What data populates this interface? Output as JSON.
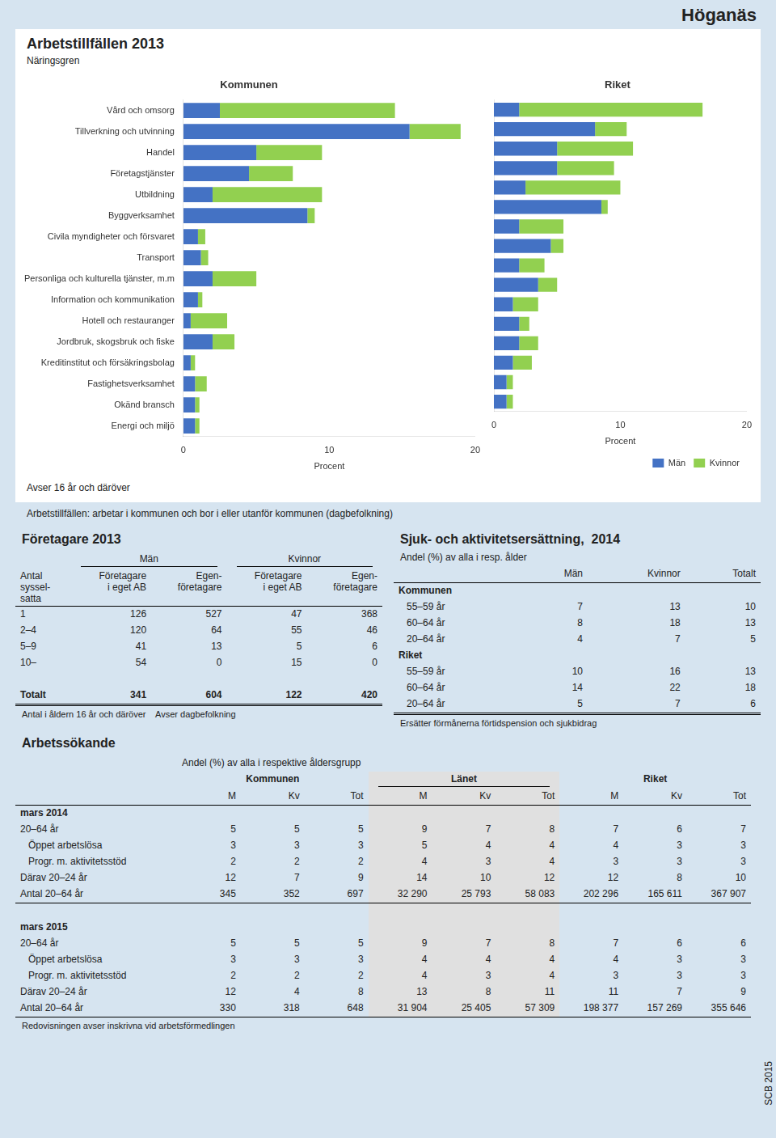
{
  "title": "Höganäs",
  "panel": {
    "title": "Arbetstillfällen 2013",
    "subtitle": "Näringsgren",
    "note": "Avser 16 år och däröver",
    "footnote": "Arbetstillfällen: arbetar i kommunen och bor i eller utanför kommunen (dagbefolkning)"
  },
  "chart_data": [
    {
      "type": "bar",
      "orientation": "horizontal",
      "stacked": true,
      "title": "Kommunen",
      "categories": [
        "Vård och omsorg",
        "Tillverkning och utvinning",
        "Handel",
        "Företagstjänster",
        "Utbildning",
        "Byggverksamhet",
        "Civila myndigheter och försvaret",
        "Transport",
        "Personliga och kulturella tjänster, m.m",
        "Information och kommunikation",
        "Hotell och restauranger",
        "Jordbruk, skogsbruk och fiske",
        "Kreditinstitut och försäkringsbolag",
        "Fastighetsverksamhet",
        "Okänd bransch",
        "Energi och miljö"
      ],
      "series": [
        {
          "name": "Män",
          "color": "#4472C4",
          "values": [
            2.5,
            15.5,
            5.0,
            4.5,
            2.0,
            8.5,
            1.0,
            1.2,
            2.0,
            1.0,
            0.5,
            2.0,
            0.5,
            0.8,
            0.8,
            0.8
          ]
        },
        {
          "name": "Kvinnor",
          "color": "#92D050",
          "values": [
            12.0,
            3.5,
            4.5,
            3.0,
            7.5,
            0.5,
            0.5,
            0.5,
            3.0,
            0.3,
            2.5,
            1.5,
            0.3,
            0.8,
            0.3,
            0.3
          ]
        }
      ],
      "x_label": "Procent",
      "xlim": [
        0,
        20
      ],
      "xticks": [
        0,
        10,
        20
      ],
      "grid": false,
      "legend": false
    },
    {
      "type": "bar",
      "orientation": "horizontal",
      "stacked": true,
      "title": "Riket",
      "categories": [
        "Vård och omsorg",
        "Tillverkning och utvinning",
        "Handel",
        "Företagstjänster",
        "Utbildning",
        "Byggverksamhet",
        "Civila myndigheter och försvaret",
        "Transport",
        "Personliga och kulturella tjänster, m.m",
        "Information och kommunikation",
        "Hotell och restauranger",
        "Jordbruk, skogsbruk och fiske",
        "Kreditinstitut och försäkringsbolag",
        "Fastighetsverksamhet",
        "Okänd bransch",
        "Energi och miljö"
      ],
      "series": [
        {
          "name": "Män",
          "color": "#4472C4",
          "values": [
            2.0,
            8.0,
            5.0,
            5.0,
            2.5,
            8.5,
            2.0,
            4.5,
            2.0,
            3.5,
            1.5,
            2.0,
            2.0,
            1.5,
            1.0,
            1.0
          ]
        },
        {
          "name": "Kvinnor",
          "color": "#92D050",
          "values": [
            14.5,
            2.5,
            6.0,
            4.5,
            7.5,
            0.5,
            3.5,
            1.0,
            2.0,
            1.5,
            2.0,
            0.8,
            1.5,
            1.5,
            0.5,
            0.5
          ]
        }
      ],
      "x_label": "Procent",
      "xlim": [
        0,
        20
      ],
      "xticks": [
        0,
        10,
        20
      ],
      "grid": false,
      "legend": "lower right",
      "tick_labels": "x"
    }
  ],
  "tables": [
    {
      "title": "Företagare 2013",
      "row_header": "Antal\nsyssel-\nsatta",
      "column_groups": [
        {
          "name": "Män",
          "columns": [
            "Företagare\ni eget AB",
            "Egen-\nföretagare"
          ]
        },
        {
          "name": "Kvinnor",
          "columns": [
            "Företagare\ni eget AB",
            "Egen-\nföretagare"
          ]
        }
      ],
      "rows": [
        [
          "1",
          126,
          527,
          47,
          368
        ],
        [
          "2–4",
          120,
          64,
          55,
          46
        ],
        [
          "5–9",
          41,
          13,
          5,
          6
        ],
        [
          "10–",
          54,
          0,
          15,
          0
        ]
      ],
      "total": [
        "Totalt",
        341,
        604,
        122,
        420
      ],
      "notes": [
        "Antal i åldern 16 år och däröver",
        "Avser dagbefolkning"
      ]
    },
    {
      "title": "Sjuk- och aktivitetsersättning,  2014",
      "subtitle": "Andel (%) av alla i resp. ålder",
      "columns": [
        "Män",
        "Kvinnor",
        "Totalt"
      ],
      "groups": [
        {
          "name": "Kommunen",
          "rows": [
            [
              "55–59 år",
              7,
              13,
              10
            ],
            [
              "60–64 år",
              8,
              18,
              13
            ],
            [
              "20–64 år",
              4,
              7,
              5
            ]
          ]
        },
        {
          "name": "Riket",
          "rows": [
            [
              "55–59 år",
              10,
              16,
              13
            ],
            [
              "60–64 år",
              14,
              22,
              18
            ],
            [
              "20–64 år",
              5,
              7,
              6
            ]
          ]
        }
      ],
      "notes": [
        "Ersätter förmånerna förtidspension och sjukbidrag"
      ]
    },
    {
      "title": "Arbetssökande",
      "subtitle": "Andel (%) av alla i respektive åldersgrupp",
      "column_groups": [
        {
          "name": "Kommunen",
          "columns": [
            "M",
            "Kv",
            "Tot"
          ]
        },
        {
          "name": "Länet",
          "columns": [
            "M",
            "Kv",
            "Tot"
          ]
        },
        {
          "name": "Riket",
          "columns": [
            "M",
            "Kv",
            "Tot"
          ]
        }
      ],
      "groups": [
        {
          "name": "mars 2014",
          "rows": [
            [
              "20–64 år",
              5,
              5,
              5,
              9,
              7,
              8,
              7,
              6,
              7
            ],
            [
              "Öppet arbetslösa",
              3,
              3,
              3,
              5,
              4,
              4,
              4,
              3,
              3
            ],
            [
              "Progr. m. aktivitetsstöd",
              2,
              2,
              2,
              4,
              3,
              4,
              3,
              3,
              3
            ],
            [
              "Därav 20–24 år",
              12,
              7,
              9,
              14,
              10,
              12,
              12,
              8,
              10
            ],
            [
              "Antal 20–64 år",
              345,
              352,
              697,
              {
                "value": 32290,
                "label": "32 290"
              },
              {
                "value": 25793,
                "label": "25 793"
              },
              {
                "value": 58083,
                "label": "58 083"
              },
              {
                "value": 202296,
                "label": "202 296"
              },
              {
                "value": 165611,
                "label": "165 611"
              },
              {
                "value": 367907,
                "label": "367 907"
              }
            ]
          ]
        },
        {
          "name": "mars 2015",
          "rows": [
            [
              "20–64 år",
              5,
              5,
              5,
              9,
              7,
              8,
              7,
              6,
              6
            ],
            [
              "Öppet arbetslösa",
              3,
              3,
              3,
              4,
              4,
              4,
              4,
              3,
              3
            ],
            [
              "Progr. m. aktivitetsstöd",
              2,
              2,
              2,
              4,
              3,
              4,
              3,
              3,
              3
            ],
            [
              "Därav 20–24 år",
              12,
              4,
              8,
              13,
              8,
              11,
              11,
              7,
              9
            ],
            [
              "Antal 20–64 år",
              330,
              318,
              648,
              {
                "value": 31904,
                "label": "31 904"
              },
              {
                "value": 25405,
                "label": "25 405"
              },
              {
                "value": 57309,
                "label": "57 309"
              },
              {
                "value": 198377,
                "label": "198 377"
              },
              {
                "value": 157269,
                "label": "157 269"
              },
              {
                "value": 355646,
                "label": "355 646"
              }
            ]
          ]
        }
      ],
      "notes": [
        "Redovisningen avser inskrivna vid arbetsförmedlingen"
      ]
    }
  ],
  "source": "SCB 2015"
}
